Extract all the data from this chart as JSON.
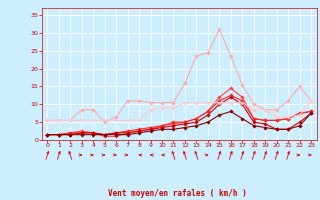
{
  "x": [
    0,
    1,
    2,
    3,
    4,
    5,
    6,
    7,
    8,
    9,
    10,
    11,
    12,
    13,
    14,
    15,
    16,
    17,
    18,
    19,
    20,
    21,
    22,
    23
  ],
  "series": [
    {
      "color": "#ff4444",
      "values": [
        1.5,
        1.5,
        2,
        2.5,
        2,
        1,
        1,
        2,
        2.5,
        3,
        4,
        4.5,
        5,
        6,
        8,
        12,
        14.5,
        12,
        6,
        5.5,
        5.5,
        6,
        7.5,
        8
      ],
      "lw": 0.8,
      "marker": "D",
      "ms": 1.8
    },
    {
      "color": "#ff2222",
      "values": [
        1.5,
        1.5,
        2,
        2,
        2,
        1.5,
        2,
        2.5,
        3,
        3.5,
        4,
        5,
        5,
        6,
        8,
        11,
        12.5,
        11,
        6,
        5.5,
        5.5,
        6,
        7.5,
        8
      ],
      "lw": 0.8,
      "marker": "D",
      "ms": 1.8
    },
    {
      "color": "#cc0000",
      "values": [
        1.5,
        1.5,
        1.5,
        2,
        2,
        1.5,
        2,
        2,
        2.5,
        3,
        3.5,
        4,
        4.5,
        5,
        7,
        10,
        12,
        10,
        5,
        4.5,
        3,
        3,
        5,
        7.5
      ],
      "lw": 0.8,
      "marker": "D",
      "ms": 1.8
    },
    {
      "color": "#880000",
      "values": [
        1.5,
        1.5,
        1.5,
        1.5,
        1.5,
        1.5,
        1.5,
        1.5,
        2,
        2.5,
        3,
        3,
        3.5,
        4,
        5,
        7,
        8,
        6,
        4,
        3.5,
        3,
        3,
        4,
        7.5
      ],
      "lw": 0.8,
      "marker": "D",
      "ms": 1.8
    },
    {
      "color": "#ffaaaa",
      "values": [
        5.5,
        5.5,
        5.5,
        8.5,
        8.5,
        5,
        6.5,
        11,
        11,
        10.5,
        10.5,
        10.5,
        16,
        23.5,
        24.5,
        31,
        23.5,
        15.5,
        10,
        8.5,
        8.5,
        11,
        15,
        11
      ],
      "lw": 0.8,
      "marker": "D",
      "ms": 1.8
    },
    {
      "color": "#ffcccc",
      "values": [
        5.5,
        5.5,
        5.5,
        5.5,
        5.5,
        5.5,
        5.5,
        5.5,
        5.5,
        8.5,
        9,
        9,
        10.5,
        10.5,
        10.5,
        10.5,
        10.5,
        10.5,
        8.5,
        8.5,
        6.5,
        6.5,
        7,
        11
      ],
      "lw": 0.8,
      "marker": "D",
      "ms": 1.8
    }
  ],
  "xlabel": "Vent moyen/en rafales ( km/h )",
  "ylim": [
    0,
    37
  ],
  "xlim": [
    -0.5,
    23.5
  ],
  "yticks": [
    0,
    5,
    10,
    15,
    20,
    25,
    30,
    35
  ],
  "xticks": [
    0,
    1,
    2,
    3,
    4,
    5,
    6,
    7,
    8,
    9,
    10,
    11,
    12,
    13,
    14,
    15,
    16,
    17,
    18,
    19,
    20,
    21,
    22,
    23
  ],
  "bg_color": "#cceeff",
  "grid_color": "#ffffff",
  "tick_color": "#cc0000",
  "label_color": "#cc0000",
  "arrow_color": "#dd0000",
  "arrow_angles": [
    45,
    45,
    315,
    90,
    90,
    90,
    90,
    90,
    270,
    270,
    270,
    315,
    315,
    315,
    90,
    45,
    45,
    45,
    45,
    45,
    45,
    45,
    90,
    90
  ]
}
